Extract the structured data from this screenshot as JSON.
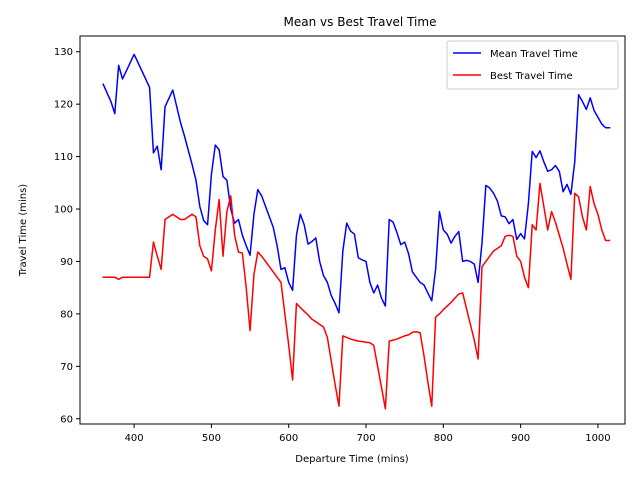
{
  "chart_data": {
    "type": "line",
    "title": "Mean vs Best Travel Time",
    "xlabel": "Departure Time (mins)",
    "ylabel": "Travel Time (mins)",
    "xlim": [
      330,
      1035
    ],
    "ylim": [
      59,
      133
    ],
    "xticks": [
      400,
      500,
      600,
      700,
      800,
      900,
      1000
    ],
    "yticks": [
      60,
      70,
      80,
      90,
      100,
      110,
      120,
      130
    ],
    "xtick_labels": [
      "400",
      "500",
      "600",
      "700",
      "800",
      "900",
      "1000"
    ],
    "ytick_labels": [
      "60",
      "70",
      "80",
      "90",
      "100",
      "110",
      "120",
      "130"
    ],
    "grid": false,
    "legend_position": "top-right",
    "series": [
      {
        "name": "Mean Travel Time",
        "color": "#0000ff",
        "x": [
          360,
          370,
          375,
          380,
          385,
          400,
          420,
          425,
          430,
          435,
          440,
          450,
          460,
          465,
          475,
          480,
          485,
          490,
          495,
          500,
          505,
          510,
          515,
          520,
          525,
          530,
          535,
          540,
          545,
          550,
          555,
          560,
          565,
          570,
          575,
          580,
          585,
          590,
          595,
          600,
          605,
          610,
          615,
          620,
          625,
          630,
          635,
          640,
          645,
          650,
          655,
          660,
          665,
          670,
          675,
          680,
          685,
          690,
          695,
          700,
          705,
          710,
          715,
          720,
          725,
          730,
          735,
          740,
          745,
          750,
          755,
          760,
          765,
          770,
          775,
          780,
          785,
          790,
          795,
          800,
          805,
          810,
          815,
          820,
          825,
          830,
          835,
          840,
          845,
          850,
          855,
          860,
          865,
          870,
          875,
          880,
          885,
          890,
          895,
          900,
          905,
          910,
          915,
          920,
          925,
          930,
          935,
          940,
          945,
          950,
          955,
          960,
          965,
          970,
          975,
          980,
          985,
          990,
          995,
          1000,
          1005,
          1010,
          1015
        ],
        "values": [
          123.8,
          120.5,
          118.2,
          127.4,
          124.8,
          129.5,
          123.2,
          110.7,
          112.0,
          107.5,
          119.5,
          122.7,
          116.5,
          114.0,
          108.5,
          105.5,
          100.5,
          97.8,
          97.0,
          106.6,
          112.2,
          111.3,
          106.2,
          105.5,
          100.0,
          97.3,
          98.0,
          95.0,
          93.0,
          91.2,
          99.0,
          103.7,
          102.5,
          100.5,
          98.5,
          96.5,
          93.0,
          88.5,
          88.8,
          86.0,
          84.5,
          95.0,
          99.0,
          97.0,
          93.3,
          93.8,
          94.5,
          90.0,
          87.3,
          86.0,
          83.5,
          82.0,
          80.2,
          92.0,
          97.3,
          95.8,
          95.2,
          90.7,
          90.3,
          90.0,
          86.0,
          84.0,
          85.5,
          83.0,
          81.5,
          98.0,
          97.5,
          95.5,
          93.2,
          93.7,
          91.5,
          88.0,
          87.0,
          86.0,
          85.5,
          84.0,
          82.5,
          88.5,
          99.5,
          96.0,
          95.2,
          93.5,
          94.8,
          95.7,
          90.0,
          90.2,
          90.0,
          89.5,
          86.0,
          93.5,
          104.5,
          104.0,
          103.0,
          101.5,
          98.7,
          98.5,
          97.2,
          98.0,
          94.2,
          95.3,
          94.3,
          101.0,
          111.0,
          109.8,
          111.1,
          109.0,
          107.2,
          107.5,
          108.3,
          107.2,
          103.3,
          104.7,
          102.8,
          109.0,
          121.8,
          120.5,
          119.0,
          121.2,
          118.8,
          117.5,
          116.2,
          115.5,
          115.5
        ]
      },
      {
        "name": "Best Travel Time",
        "color": "#ff0000",
        "x": [
          360,
          370,
          375,
          380,
          385,
          400,
          420,
          425,
          430,
          435,
          440,
          450,
          460,
          465,
          475,
          480,
          485,
          490,
          495,
          500,
          505,
          510,
          515,
          520,
          525,
          530,
          535,
          540,
          545,
          550,
          555,
          560,
          565,
          570,
          575,
          580,
          585,
          590,
          595,
          600,
          605,
          610,
          615,
          620,
          625,
          630,
          635,
          640,
          645,
          650,
          655,
          660,
          665,
          670,
          675,
          680,
          685,
          690,
          695,
          700,
          705,
          710,
          715,
          720,
          725,
          730,
          735,
          740,
          745,
          750,
          755,
          760,
          765,
          770,
          775,
          780,
          785,
          790,
          795,
          800,
          805,
          810,
          815,
          820,
          825,
          830,
          835,
          840,
          845,
          850,
          855,
          860,
          865,
          870,
          875,
          880,
          885,
          890,
          895,
          900,
          905,
          910,
          915,
          920,
          925,
          930,
          935,
          940,
          945,
          950,
          955,
          960,
          965,
          970,
          975,
          980,
          985,
          990,
          995,
          1000,
          1005,
          1010,
          1015
        ],
        "values": [
          87.0,
          87.0,
          87.0,
          86.6,
          87.0,
          87.0,
          87.0,
          93.7,
          91.0,
          88.5,
          98.0,
          99.0,
          98.0,
          98.0,
          99.0,
          98.5,
          93.0,
          91.0,
          90.5,
          88.2,
          96.0,
          101.8,
          91.0,
          99.5,
          102.5,
          95.0,
          91.8,
          91.6,
          85.0,
          76.8,
          87.5,
          91.8,
          91.0,
          90.0,
          89.0,
          88.0,
          87.0,
          86.0,
          80.0,
          74.0,
          67.4,
          82.0,
          81.2,
          80.5,
          79.8,
          79.0,
          78.5,
          78.0,
          77.5,
          75.5,
          71.0,
          66.5,
          62.4,
          75.8,
          75.5,
          75.2,
          75.0,
          74.8,
          74.7,
          74.6,
          74.5,
          74.0,
          70.0,
          66.0,
          61.9,
          74.8,
          75.0,
          75.2,
          75.5,
          75.8,
          76.0,
          76.5,
          76.6,
          76.4,
          72.0,
          67.0,
          62.4,
          79.4,
          80.0,
          80.8,
          81.5,
          82.2,
          83.0,
          83.8,
          84.0,
          81.0,
          78.0,
          75.0,
          71.4,
          89.0,
          90.0,
          91.0,
          92.0,
          92.5,
          93.0,
          94.8,
          95.0,
          94.8,
          91.0,
          90.0,
          87.0,
          85.0,
          97.0,
          96.0,
          104.9,
          100.5,
          96.0,
          99.5,
          97.5,
          95.0,
          92.5,
          89.5,
          86.6,
          103.0,
          102.3,
          98.5,
          96.0,
          104.3,
          101.0,
          99.0,
          96.0,
          94.0,
          94.0
        ]
      }
    ]
  }
}
